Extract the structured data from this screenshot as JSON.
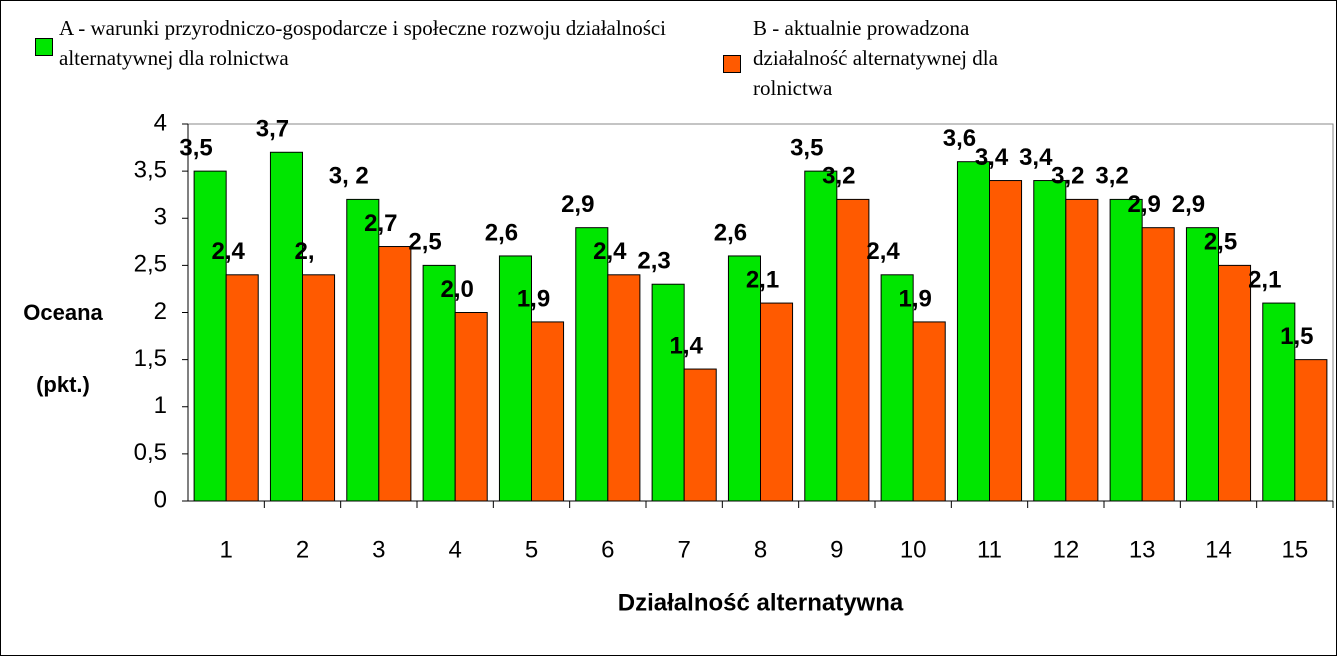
{
  "chart_data": {
    "type": "bar",
    "x_label": "Działalność alternatywna",
    "y_label_lines": [
      "Oceana",
      "(pkt.)"
    ],
    "categories": [
      "1",
      "2",
      "3",
      "4",
      "5",
      "6",
      "7",
      "8",
      "9",
      "10",
      "11",
      "12",
      "13",
      "14",
      "15"
    ],
    "series": [
      {
        "name": "A  - warunki przyrodniczo-gospodarcze i społeczne rozwoju działalności alternatywnej dla rolnictwa",
        "color": "#00e600",
        "values": [
          3.5,
          3.7,
          3.2,
          2.5,
          2.6,
          2.9,
          2.3,
          2.6,
          3.5,
          2.4,
          3.6,
          3.4,
          3.2,
          2.9,
          2.1
        ],
        "value_labels": [
          "3,5",
          "3,7",
          "3, 2",
          "2,5",
          "2,6",
          "2,9",
          "2,3",
          "2,6",
          "3,5",
          "2,4",
          "3,6",
          "3,4",
          "3,2",
          "2,9",
          "2,1"
        ]
      },
      {
        "name": "B -  aktualnie prowadzona działalność alternatywnej dla rolnictwa",
        "color": "#ff5a00",
        "values": [
          2.4,
          2.4,
          2.7,
          2.0,
          1.9,
          2.4,
          1.4,
          2.1,
          3.2,
          1.9,
          3.4,
          3.2,
          2.9,
          2.5,
          1.5
        ],
        "value_labels": [
          "2,4",
          "2,",
          "2,7",
          "2,0",
          "1,9",
          "2,4",
          "1,4",
          "2,1",
          "3,2",
          "1,9",
          "3,4",
          "3,2",
          "2,9",
          "2,5",
          "1,5"
        ]
      }
    ],
    "ylim": [
      0,
      4
    ],
    "yticks": [
      0,
      {
        "value": 0.5,
        "label": "0,5"
      },
      1,
      {
        "value": 1.5,
        "label": "1,5"
      },
      2,
      {
        "value": 2.5,
        "label": "2,5"
      },
      3,
      {
        "value": 3.5,
        "label": "3,5"
      },
      4
    ],
    "legend": "top"
  }
}
